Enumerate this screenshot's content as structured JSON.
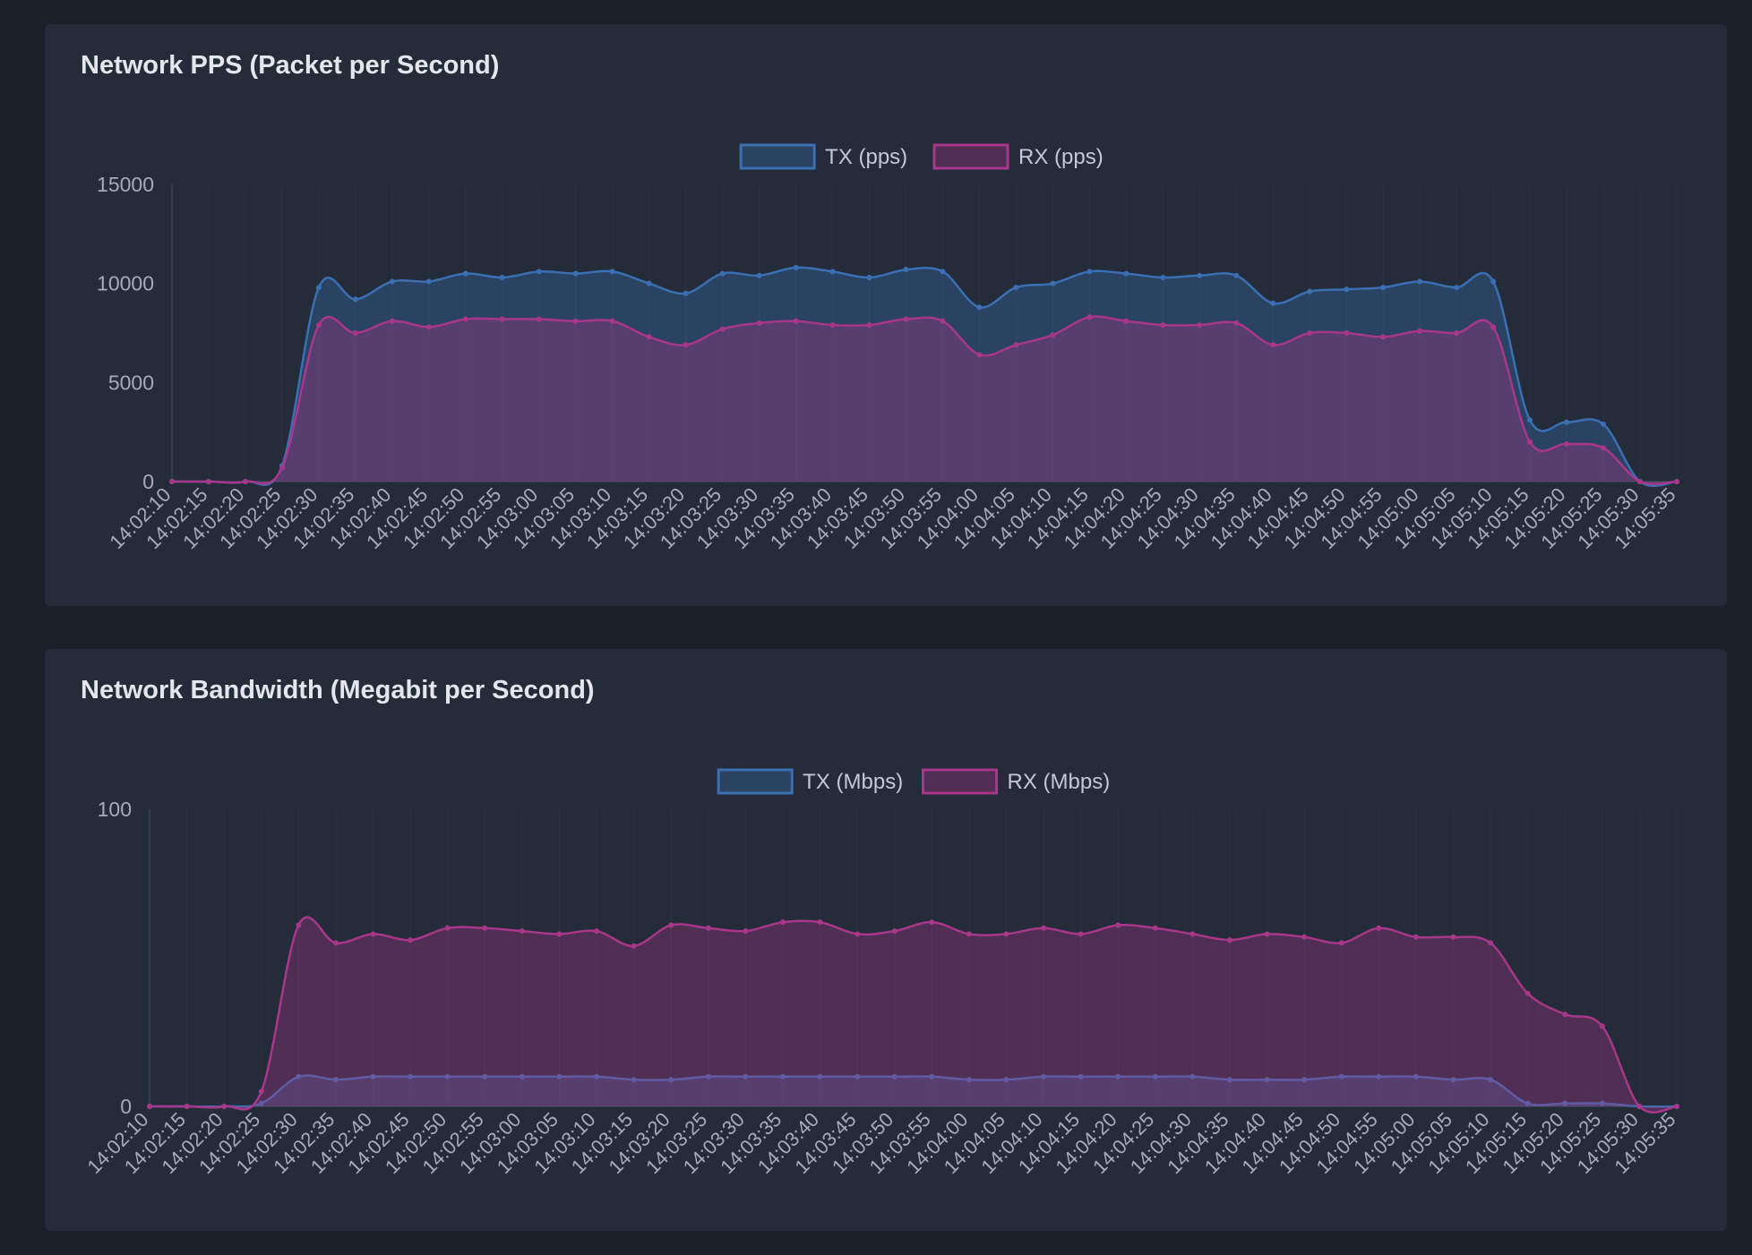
{
  "theme": {
    "tx_color": "#3b6fb3",
    "rx_color": "#a8368a",
    "tick_color": "#a4acb8",
    "grid_color": "#2b3440"
  },
  "panels": [
    {
      "title": "Network PPS (Packet per Second)",
      "legend": [
        "TX (pps)",
        "RX (pps)"
      ]
    },
    {
      "title": "Network Bandwidth (Megabit per Second)",
      "legend": [
        "TX (Mbps)",
        "RX (Mbps)"
      ]
    }
  ],
  "chart_data": [
    {
      "type": "area",
      "title": "Network PPS (Packet per Second)",
      "xlabel": "",
      "ylabel": "",
      "ylim": [
        0,
        15000
      ],
      "yticks": [
        0,
        5000,
        10000,
        15000
      ],
      "grid": true,
      "legend_position": "top-center",
      "categories": [
        "14:02:10",
        "14:02:15",
        "14:02:20",
        "14:02:25",
        "14:02:30",
        "14:02:35",
        "14:02:40",
        "14:02:45",
        "14:02:50",
        "14:02:55",
        "14:03:00",
        "14:03:05",
        "14:03:10",
        "14:03:15",
        "14:03:20",
        "14:03:25",
        "14:03:30",
        "14:03:35",
        "14:03:40",
        "14:03:45",
        "14:03:50",
        "14:03:55",
        "14:04:00",
        "14:04:05",
        "14:04:10",
        "14:04:15",
        "14:04:20",
        "14:04:25",
        "14:04:30",
        "14:04:35",
        "14:04:40",
        "14:04:45",
        "14:04:50",
        "14:04:55",
        "14:05:00",
        "14:05:05",
        "14:05:10",
        "14:05:15",
        "14:05:20",
        "14:05:25",
        "14:05:30",
        "14:05:35"
      ],
      "series": [
        {
          "name": "TX (pps)",
          "values": [
            0,
            0,
            0,
            800,
            9800,
            9200,
            10100,
            10100,
            10500,
            10300,
            10600,
            10500,
            10600,
            10000,
            9500,
            10500,
            10400,
            10800,
            10600,
            10300,
            10700,
            10600,
            8800,
            9800,
            10000,
            10600,
            10500,
            10300,
            10400,
            10400,
            9000,
            9600,
            9700,
            9800,
            10100,
            9800,
            10100,
            3100,
            3000,
            2900,
            0,
            0
          ]
        },
        {
          "name": "RX (pps)",
          "values": [
            0,
            0,
            0,
            700,
            7900,
            7500,
            8100,
            7800,
            8200,
            8200,
            8200,
            8100,
            8100,
            7300,
            6900,
            7700,
            8000,
            8100,
            7900,
            7900,
            8200,
            8100,
            6400,
            6900,
            7400,
            8300,
            8100,
            7900,
            7900,
            8000,
            6900,
            7500,
            7500,
            7300,
            7600,
            7500,
            7800,
            2000,
            1900,
            1700,
            0,
            0
          ]
        }
      ]
    },
    {
      "type": "area",
      "title": "Network Bandwidth (Megabit per Second)",
      "xlabel": "",
      "ylabel": "",
      "ylim": [
        0,
        100
      ],
      "yticks": [
        0,
        100
      ],
      "grid": true,
      "legend_position": "top-center",
      "categories": [
        "14:02:10",
        "14:02:15",
        "14:02:20",
        "14:02:25",
        "14:02:30",
        "14:02:35",
        "14:02:40",
        "14:02:45",
        "14:02:50",
        "14:02:55",
        "14:03:00",
        "14:03:05",
        "14:03:10",
        "14:03:15",
        "14:03:20",
        "14:03:25",
        "14:03:30",
        "14:03:35",
        "14:03:40",
        "14:03:45",
        "14:03:50",
        "14:03:55",
        "14:04:00",
        "14:04:05",
        "14:04:10",
        "14:04:15",
        "14:04:20",
        "14:04:25",
        "14:04:30",
        "14:04:35",
        "14:04:40",
        "14:04:45",
        "14:04:50",
        "14:04:55",
        "14:05:00",
        "14:05:05",
        "14:05:10",
        "14:05:15",
        "14:05:20",
        "14:05:25",
        "14:05:30",
        "14:05:35"
      ],
      "series": [
        {
          "name": "TX (Mbps)",
          "values": [
            0,
            0,
            0,
            1,
            10,
            9,
            10,
            10,
            10,
            10,
            10,
            10,
            10,
            9,
            9,
            10,
            10,
            10,
            10,
            10,
            10,
            10,
            9,
            9,
            10,
            10,
            10,
            10,
            10,
            9,
            9,
            9,
            10,
            10,
            10,
            9,
            9,
            1,
            1,
            1,
            0,
            0
          ]
        },
        {
          "name": "RX (Mbps)",
          "values": [
            0,
            0,
            0,
            5,
            61,
            55,
            58,
            56,
            60,
            60,
            59,
            58,
            59,
            54,
            61,
            60,
            59,
            62,
            62,
            58,
            59,
            62,
            58,
            58,
            60,
            58,
            61,
            60,
            58,
            56,
            58,
            57,
            55,
            60,
            57,
            57,
            55,
            38,
            31,
            27,
            0,
            0
          ]
        }
      ]
    }
  ]
}
